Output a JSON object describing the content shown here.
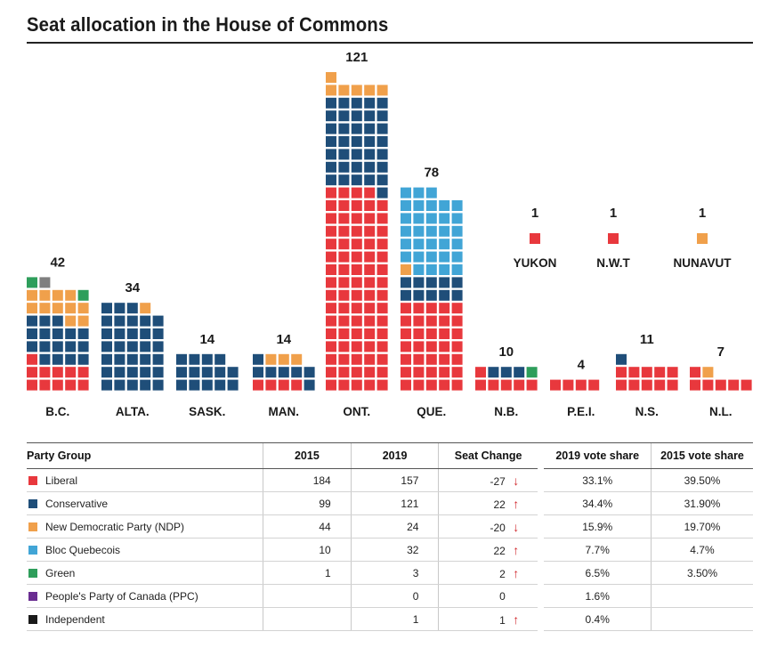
{
  "title": "Seat allocation in the House of Commons",
  "colors": {
    "Liberal": "#e8383d",
    "Conservative": "#1f4e79",
    "NDP": "#f0a04b",
    "Bloc": "#41a5d6",
    "Green": "#2e9e5b",
    "PPC": "#6a2d91",
    "Independent": "#7f7f7f"
  },
  "chart_data": {
    "type": "waffle",
    "title": "Seat allocation in the House of Commons",
    "party_order": [
      "Liberal",
      "Conservative",
      "NDP",
      "Bloc",
      "Green",
      "Independent"
    ],
    "provinces": [
      {
        "label": "B.C.",
        "total": "42",
        "seats": {
          "Liberal": 11,
          "Conservative": 17,
          "NDP": 11,
          "Green": 2,
          "Independent": 1
        }
      },
      {
        "label": "ALTA.",
        "total": "34",
        "seats": {
          "Conservative": 33,
          "NDP": 1
        }
      },
      {
        "label": "SASK.",
        "total": "14",
        "seats": {
          "Conservative": 14
        }
      },
      {
        "label": "MAN.",
        "total": "14",
        "seats": {
          "Liberal": 4,
          "Conservative": 7,
          "NDP": 3
        }
      },
      {
        "label": "ONT.",
        "total": "121",
        "seats": {
          "Liberal": 79,
          "Conservative": 36,
          "NDP": 6
        }
      },
      {
        "label": "QUE.",
        "total": "78",
        "seats": {
          "Liberal": 35,
          "Bloc": 32,
          "Conservative": 10,
          "NDP": 1
        }
      },
      {
        "label": "N.B.",
        "total": "10",
        "seats": {
          "Liberal": 6,
          "Conservative": 3,
          "Green": 1
        }
      },
      {
        "label": "P.E.I.",
        "total": "4",
        "seats": {
          "Liberal": 4
        }
      },
      {
        "label": "N.S.",
        "total": "11",
        "seats": {
          "Liberal": 10,
          "Conservative": 1
        }
      },
      {
        "label": "N.L.",
        "total": "7",
        "seats": {
          "Liberal": 6,
          "NDP": 1
        }
      }
    ],
    "territories": [
      {
        "label": "YUKON",
        "total": "1",
        "party": "Liberal"
      },
      {
        "label": "N.W.T",
        "total": "1",
        "party": "Liberal"
      },
      {
        "label": "NUNAVUT",
        "total": "1",
        "party": "NDP"
      }
    ]
  },
  "table": {
    "headers": {
      "party": "Party Group",
      "y2015": "2015",
      "y2019": "2019",
      "change": "Seat Change",
      "vs2019": "2019 vote share",
      "vs2015": "2015 vote share"
    },
    "rows": [
      {
        "party": "Liberal",
        "color": "#e8383d",
        "y2015": "184",
        "y2019": "157",
        "change": "-27",
        "arrow": "↓",
        "vs2019": "33.1%",
        "vs2015": "39.50%"
      },
      {
        "party": "Conservative",
        "color": "#1f4e79",
        "y2015": "99",
        "y2019": "121",
        "change": "22",
        "arrow": "↑",
        "vs2019": "34.4%",
        "vs2015": "31.90%"
      },
      {
        "party": "New Democratic Party (NDP)",
        "color": "#f0a04b",
        "y2015": "44",
        "y2019": "24",
        "change": "-20",
        "arrow": "↓",
        "vs2019": "15.9%",
        "vs2015": "19.70%"
      },
      {
        "party": "Bloc Quebecois",
        "color": "#41a5d6",
        "y2015": "10",
        "y2019": "32",
        "change": "22",
        "arrow": "↑",
        "vs2019": "7.7%",
        "vs2015": "4.7%"
      },
      {
        "party": "Green",
        "color": "#2e9e5b",
        "y2015": "1",
        "y2019": "3",
        "change": "2",
        "arrow": "↑",
        "vs2019": "6.5%",
        "vs2015": "3.50%"
      },
      {
        "party": "People's Party of Canada (PPC)",
        "color": "#6a2d91",
        "y2015": "",
        "y2019": "0",
        "change": "0",
        "arrow": "",
        "vs2019": "1.6%",
        "vs2015": ""
      },
      {
        "party": "Independent",
        "color": "#1a1a1a",
        "y2015": "",
        "y2019": "1",
        "change": "1",
        "arrow": "↑",
        "vs2019": "0.4%",
        "vs2015": ""
      }
    ]
  }
}
